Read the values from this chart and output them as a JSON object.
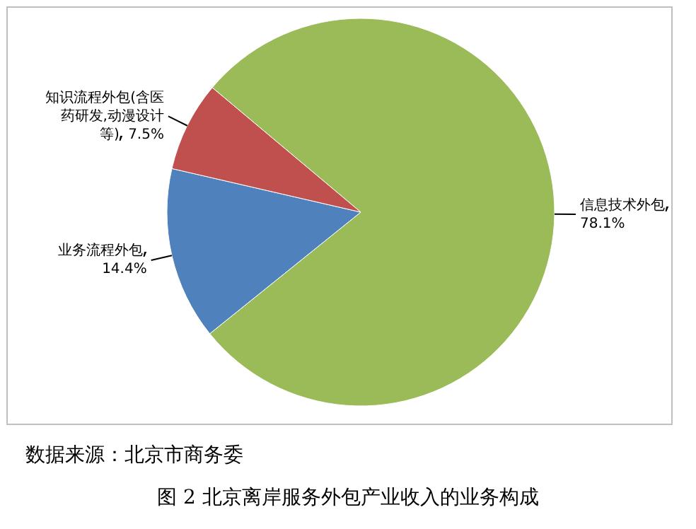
{
  "chart_data": {
    "type": "pie",
    "title": "图 2 北京离岸服务外包产业收入的业务构成",
    "categories": [
      "信息技术外包",
      "业务流程外包",
      "知识流程外包(含医药研发,动漫设计等)"
    ],
    "values": [
      78.1,
      14.4,
      7.5
    ],
    "colors": [
      "#9bbb59",
      "#4f81bd",
      "#c0504d"
    ],
    "value_labels": [
      "78.1%",
      "14.4%",
      "7.5%"
    ],
    "annotations": [
      "数据来源：北京市商务委"
    ]
  }
}
